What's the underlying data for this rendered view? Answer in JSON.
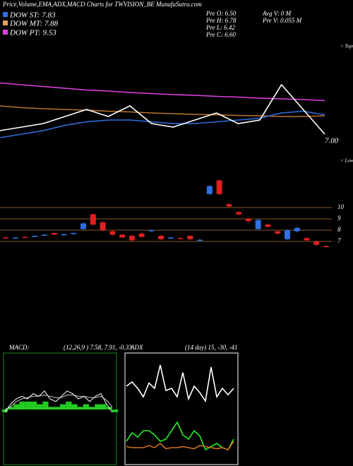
{
  "header": {
    "title": "Price,Volume,EMA,ADX,MACD Charts for TWVISION_BE MunafaSutra.com",
    "dow": [
      "DOW ST: 7.83",
      "DOW MT: 7.88",
      "DOW PT: 9.53"
    ],
    "info": [
      "Pre O: 6.50",
      "Pre H: 6.78",
      "Pre L: 6.42",
      "Pre C: 6.60",
      "Avg V: 0 M",
      "Pre V: 0.055 M"
    ],
    "tops": "< Tops",
    "lows": "< Lows",
    "last": "7.00"
  },
  "chart_data": [
    {
      "type": "line",
      "ylim": [
        6.8,
        9.6
      ],
      "series": [
        {
          "name": "EMA long",
          "color": "#e040e0",
          "values": [
            8.65,
            8.6,
            8.55,
            8.5,
            8.45,
            8.42,
            8.38,
            8.35,
            8.32,
            8.3,
            8.27,
            8.25,
            8.22,
            8.2,
            8.18,
            8.15
          ]
        },
        {
          "name": "EMA mid",
          "color": "#b8732a",
          "values": [
            8.0,
            7.95,
            7.92,
            7.9,
            7.88,
            7.85,
            7.83,
            7.8,
            7.78,
            7.76,
            7.75,
            7.73,
            7.72,
            7.7,
            7.7,
            7.72
          ]
        },
        {
          "name": "EMA short",
          "color": "#2f6fe0",
          "values": [
            7.1,
            7.2,
            7.3,
            7.45,
            7.55,
            7.6,
            7.6,
            7.55,
            7.5,
            7.5,
            7.55,
            7.6,
            7.65,
            7.8,
            7.85,
            7.75
          ]
        },
        {
          "name": "Price",
          "color": "#ffffff",
          "values": [
            7.3,
            7.4,
            7.5,
            7.7,
            7.9,
            7.7,
            8.0,
            7.5,
            7.4,
            7.6,
            7.8,
            7.5,
            7.6,
            8.6,
            7.9,
            7.2
          ]
        }
      ]
    },
    {
      "type": "candlestick",
      "ylim": [
        6.5,
        14
      ],
      "yticks": [
        7,
        8,
        9,
        10
      ],
      "open": [
        7.35,
        7.3,
        7.4,
        7.45,
        7.55,
        7.75,
        7.6,
        7.7,
        8.1,
        9.4,
        8.7,
        7.9,
        7.6,
        7.5,
        7.7,
        7.9,
        7.5,
        7.3,
        7.3,
        7.5,
        7.1,
        11.2,
        12.4,
        10.3,
        9.6,
        9.0,
        8.1,
        8.5,
        7.9,
        7.2,
        7.9,
        7.3,
        7.0,
        6.6
      ],
      "high": [
        7.45,
        7.4,
        7.45,
        7.55,
        7.65,
        7.8,
        7.7,
        7.8,
        8.7,
        9.5,
        8.8,
        8.0,
        7.7,
        7.6,
        7.8,
        8.05,
        7.6,
        7.4,
        7.4,
        7.55,
        7.2,
        12.0,
        12.5,
        10.4,
        9.7,
        9.1,
        9.0,
        8.6,
        8.0,
        8.1,
        8.3,
        7.4,
        7.1,
        6.7
      ],
      "low": [
        7.3,
        7.25,
        7.3,
        7.4,
        7.5,
        7.55,
        7.5,
        7.6,
        8.0,
        8.4,
        7.9,
        7.5,
        7.3,
        7.0,
        7.3,
        7.85,
        7.1,
        7.2,
        7.2,
        7.1,
        7.0,
        11.1,
        11.1,
        10.0,
        9.3,
        8.7,
        8.0,
        8.2,
        7.6,
        7.1,
        7.8,
        7.0,
        6.6,
        6.4
      ],
      "close": [
        7.3,
        7.35,
        7.35,
        7.5,
        7.6,
        7.6,
        7.65,
        7.75,
        8.6,
        8.5,
        8.0,
        7.6,
        7.35,
        7.1,
        7.4,
        8.0,
        7.2,
        7.35,
        7.25,
        7.2,
        7.15,
        11.9,
        11.2,
        10.1,
        9.4,
        8.8,
        8.9,
        8.3,
        7.7,
        8.0,
        8.2,
        7.1,
        6.7,
        6.5
      ],
      "colors": {
        "up": "#2f6fe0",
        "down": "#e02020"
      },
      "line_color": "#b8732a"
    },
    {
      "type": "line",
      "title": "MACD:",
      "subtitle": "(12,26,9 ) 7.58, 7.91, -0.33",
      "ylim": [
        -2,
        2
      ],
      "border": "#1a8a1a",
      "series": [
        {
          "name": "MACD",
          "color": "#ffffff",
          "values": [
            -0.1,
            0.2,
            0.4,
            0.5,
            0.4,
            0.6,
            0.5,
            0.7,
            0.4,
            0.3,
            0.5,
            0.7,
            0.6,
            0.4,
            0.5,
            0.3,
            0.5,
            0.6,
            0.2,
            -0.1
          ]
        },
        {
          "name": "Signal",
          "color": "#cccccc",
          "values": [
            0.0,
            0.1,
            0.3,
            0.4,
            0.45,
            0.5,
            0.5,
            0.55,
            0.5,
            0.45,
            0.45,
            0.55,
            0.55,
            0.5,
            0.5,
            0.45,
            0.45,
            0.5,
            0.35,
            0.1
          ]
        }
      ],
      "histogram": {
        "color": "#22cc22",
        "values": [
          -0.1,
          0.1,
          0.2,
          0.3,
          0.3,
          0.3,
          0.2,
          0.3,
          0.1,
          0.1,
          0.2,
          0.3,
          0.2,
          0.1,
          0.2,
          0.1,
          0.2,
          0.2,
          0.1,
          -0.1
        ]
      }
    },
    {
      "type": "line",
      "title": "ADX",
      "subtitle": "(14 day) 15, -30, -41",
      "ylim": [
        0,
        100
      ],
      "border": "#ffffff",
      "series": [
        {
          "name": "+DI",
          "color": "#ffffff",
          "values": [
            72,
            76,
            70,
            62,
            75,
            70,
            92,
            68,
            70,
            62,
            85,
            60,
            72,
            66,
            58,
            90,
            62,
            70,
            64,
            70
          ]
        },
        {
          "name": "ADX",
          "color": "#22ee22",
          "values": [
            20,
            28,
            24,
            30,
            30,
            26,
            20,
            22,
            30,
            38,
            26,
            22,
            30,
            25,
            12,
            15,
            18,
            14,
            12,
            22
          ]
        },
        {
          "name": "-DI",
          "color": "#d07020",
          "values": [
            15,
            14,
            14,
            14,
            16,
            14,
            18,
            13,
            14,
            14,
            15,
            14,
            13,
            16,
            15,
            14,
            13,
            14,
            12,
            20
          ]
        }
      ]
    }
  ]
}
